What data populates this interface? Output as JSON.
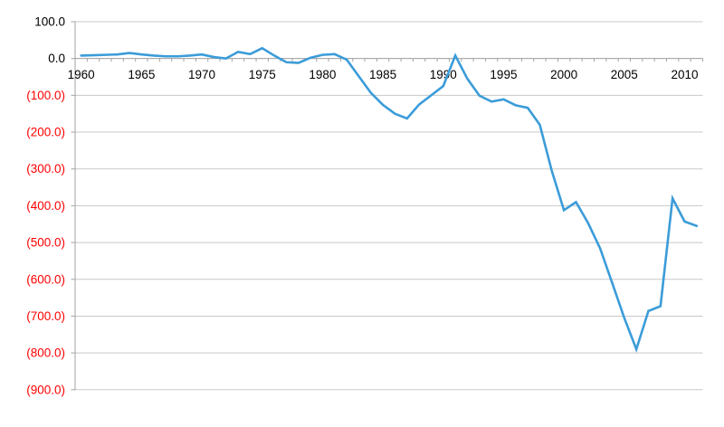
{
  "chart_data": {
    "type": "line",
    "title": "",
    "xlabel": "",
    "ylabel": "",
    "grid": true,
    "legend": "none",
    "x": [
      1960,
      1961,
      1962,
      1963,
      1964,
      1965,
      1966,
      1967,
      1968,
      1969,
      1970,
      1971,
      1972,
      1973,
      1974,
      1975,
      1976,
      1977,
      1978,
      1979,
      1980,
      1981,
      1982,
      1983,
      1984,
      1985,
      1986,
      1987,
      1988,
      1989,
      1990,
      1991,
      1992,
      1993,
      1994,
      1995,
      1996,
      1997,
      1998,
      1999,
      2000,
      2001,
      2002,
      2003,
      2004,
      2005,
      2006,
      2007,
      2008,
      2009,
      2010,
      2011
    ],
    "series": [
      {
        "name": "",
        "values": [
          8,
          9,
          10,
          11,
          15,
          11,
          8,
          6,
          6,
          8,
          11,
          4,
          0,
          18,
          12,
          28,
          8,
          -10,
          -12,
          2,
          10,
          12,
          -3,
          -48,
          -93,
          -126,
          -150,
          -163,
          -125,
          -100,
          -75,
          8,
          -55,
          -101,
          -117,
          -111,
          -127,
          -134,
          -180,
          -306,
          -412,
          -390,
          -447,
          -516,
          -610,
          -705,
          -790,
          -686,
          -673,
          -380,
          -443,
          -455
        ]
      }
    ],
    "y_axis": {
      "min": -900,
      "max": 100,
      "step": 100,
      "tick_labels": [
        {
          "value": 100,
          "label": "100.0",
          "color": "#000000"
        },
        {
          "value": 0,
          "label": "0.0",
          "color": "#000000"
        },
        {
          "value": -100,
          "label": "(100.0)",
          "color": "#FF0000"
        },
        {
          "value": -200,
          "label": "(200.0)",
          "color": "#FF0000"
        },
        {
          "value": -300,
          "label": "(300.0)",
          "color": "#FF0000"
        },
        {
          "value": -400,
          "label": "(400.0)",
          "color": "#FF0000"
        },
        {
          "value": -500,
          "label": "(500.0)",
          "color": "#FF0000"
        },
        {
          "value": -600,
          "label": "(600.0)",
          "color": "#FF0000"
        },
        {
          "value": -700,
          "label": "(700.0)",
          "color": "#FF0000"
        },
        {
          "value": -800,
          "label": "(800.0)",
          "color": "#FF0000"
        },
        {
          "value": -900,
          "label": "(900.0)",
          "color": "#FF0000"
        }
      ]
    },
    "x_axis": {
      "tick_labels": [
        {
          "value": 1960,
          "label": "1960"
        },
        {
          "value": 1965,
          "label": "1965"
        },
        {
          "value": 1970,
          "label": "1970"
        },
        {
          "value": 1975,
          "label": "1975"
        },
        {
          "value": 1980,
          "label": "1980"
        },
        {
          "value": 1985,
          "label": "1985"
        },
        {
          "value": 1990,
          "label": "1990"
        },
        {
          "value": 1995,
          "label": "1995"
        },
        {
          "value": 2000,
          "label": "2000"
        },
        {
          "value": 2005,
          "label": "2005"
        },
        {
          "value": 2010,
          "label": "2010"
        }
      ]
    },
    "styles": {
      "line_color": "#3B9CD9",
      "gridline_color": "#C8C8C8",
      "axis_color": "#A3A3A3",
      "positive_label_color": "#000000",
      "negative_label_color": "#FF0000",
      "background_color": "#FFFFFF"
    }
  }
}
